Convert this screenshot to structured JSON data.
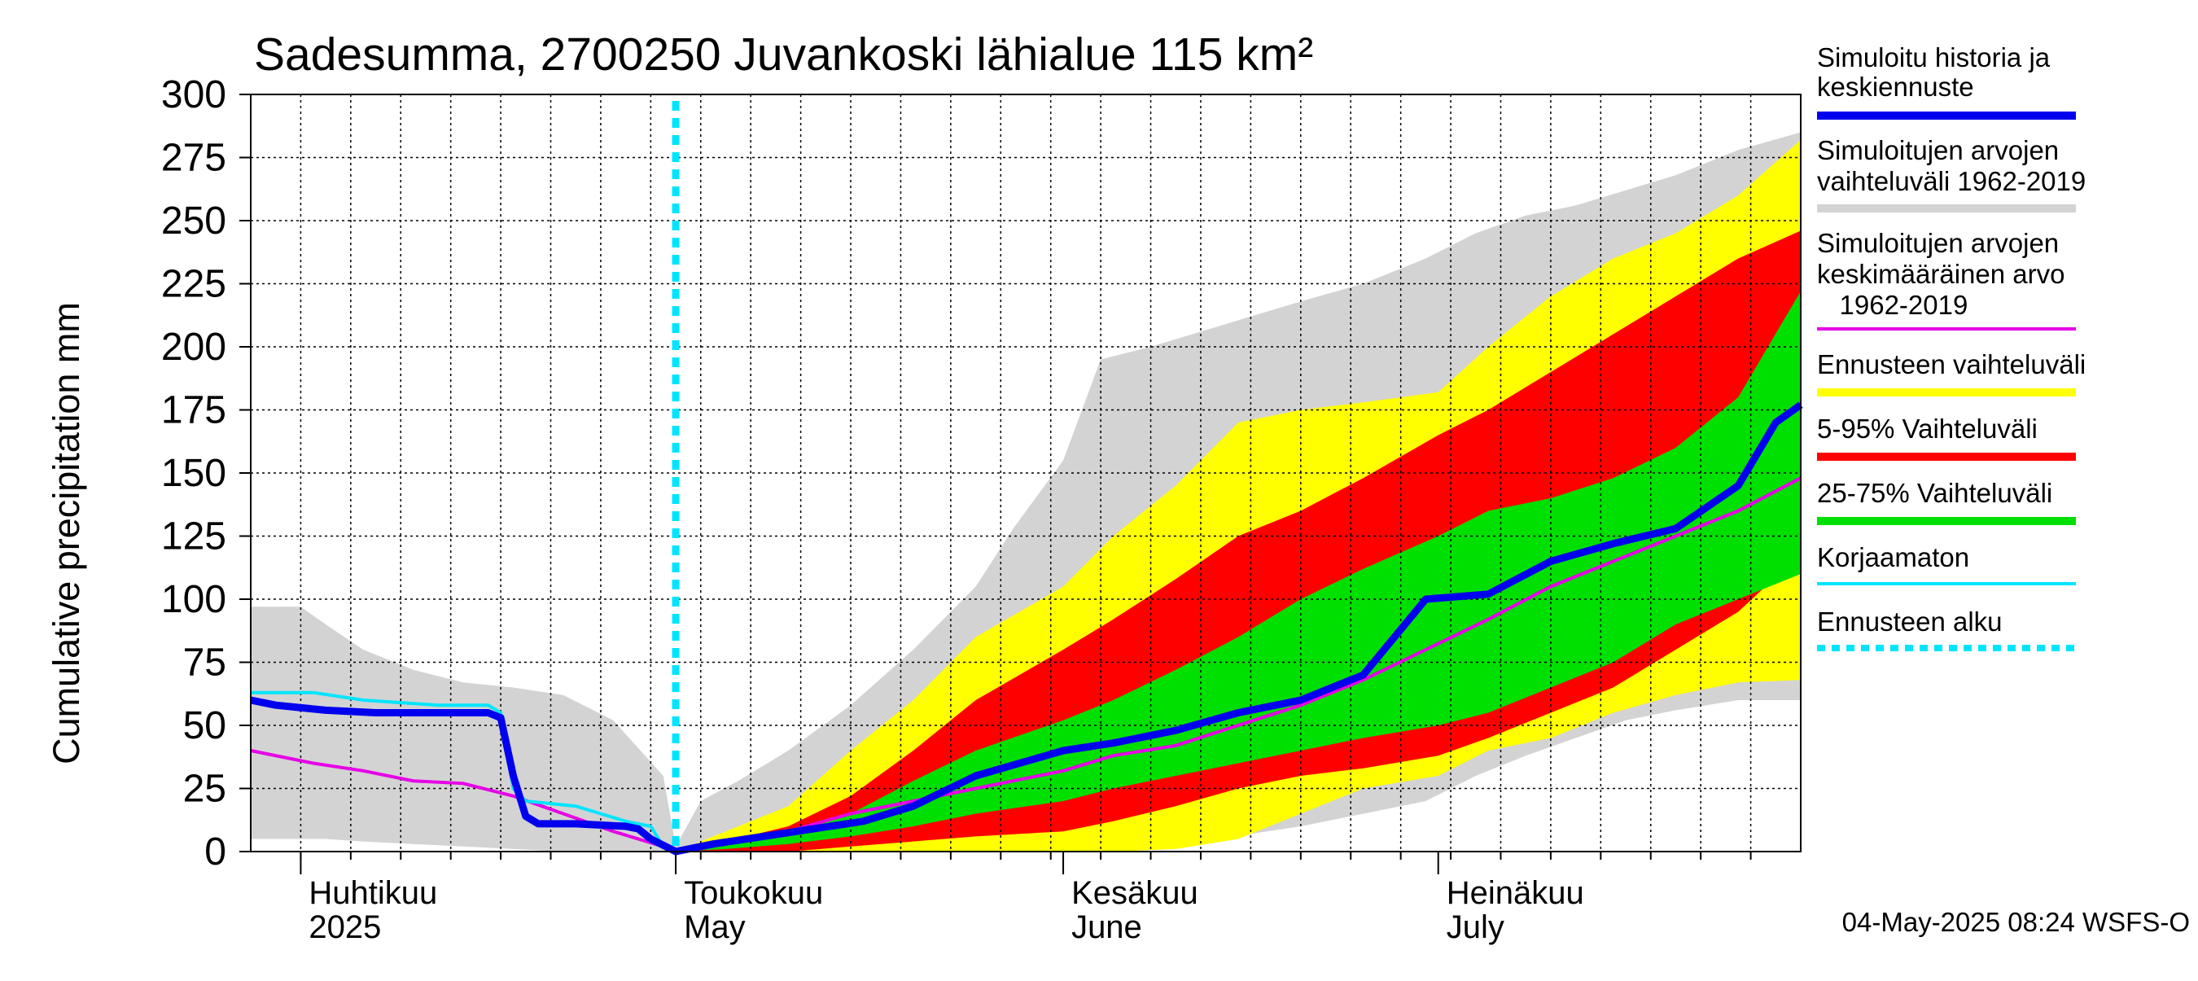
{
  "chart_data": {
    "type": "area",
    "title": "Sadesumma, 2700250 Juvankoski lähialue 115 km²",
    "ylabel": "Cumulative precipitation    mm",
    "xlabel": "",
    "ylim": [
      0,
      300
    ],
    "xlim": [
      "2025-03-28",
      "2025-07-30"
    ],
    "grid": true,
    "legend_position": "right",
    "yticks": [
      "0",
      "25",
      "50",
      "75",
      "100",
      "125",
      "150",
      "175",
      "200",
      "225",
      "250",
      "275",
      "300"
    ],
    "month_labels": [
      {
        "date": "2025-04-01",
        "line1": "Huhtikuu",
        "line2": "2025"
      },
      {
        "date": "2025-05-01",
        "line1": "Toukokuu",
        "line2": "May"
      },
      {
        "date": "2025-06-01",
        "line1": "Kesäkuu",
        "line2": "June"
      },
      {
        "date": "2025-07-01",
        "line1": "Heinäkuu",
        "line2": "July"
      }
    ],
    "forecast_start": "2025-05-01",
    "footer": "04-May-2025 08:24 WSFS-O",
    "legend": [
      {
        "label": "Simuloitu historia ja\nkeskiennuste",
        "color": "#0000ee",
        "style": "thick"
      },
      {
        "label": "Simuloitujen arvojen\nvaihteluväli 1962-2019",
        "color": "#d3d3d3",
        "style": "thick"
      },
      {
        "label": "Simuloitujen arvojen\nkeskimääräinen arvo\n   1962-2019",
        "color": "#e600e6",
        "style": "thin"
      },
      {
        "label": "Ennusteen vaihteluväli",
        "color": "#ffff00",
        "style": "thick"
      },
      {
        "label": "5-95% Vaihteluväli",
        "color": "#ff0000",
        "style": "thick"
      },
      {
        "label": "25-75% Vaihteluväli",
        "color": "#00e000",
        "style": "thick"
      },
      {
        "label": "Korjaamaton",
        "color": "#00e5ff",
        "style": "thin"
      },
      {
        "label": "Ennusteen alku",
        "color": "#00e5ff",
        "style": "dotted"
      }
    ],
    "bands": {
      "hist_range": {
        "x": [
          "2025-03-28",
          "2025-04-01",
          "2025-04-03",
          "2025-04-06",
          "2025-04-10",
          "2025-04-14",
          "2025-04-18",
          "2025-04-22",
          "2025-04-26",
          "2025-04-30",
          "2025-05-01",
          "2025-05-03",
          "2025-05-06",
          "2025-05-10",
          "2025-05-15",
          "2025-05-20",
          "2025-05-25",
          "2025-05-28",
          "2025-06-01",
          "2025-06-04",
          "2025-06-08",
          "2025-06-12",
          "2025-06-16",
          "2025-06-20",
          "2025-06-25",
          "2025-06-30",
          "2025-07-04",
          "2025-07-08",
          "2025-07-12",
          "2025-07-16",
          "2025-07-20",
          "2025-07-25",
          "2025-07-30"
        ],
        "lower": [
          5,
          5,
          5,
          4,
          3,
          2,
          1,
          0,
          0,
          0,
          0,
          0,
          0,
          0,
          0,
          0,
          0,
          0,
          0,
          1,
          3,
          5,
          7,
          10,
          15,
          20,
          30,
          38,
          45,
          52,
          56,
          60,
          60
        ],
        "upper": [
          97,
          97,
          90,
          80,
          72,
          67,
          65,
          62,
          52,
          30,
          2,
          20,
          28,
          40,
          58,
          80,
          105,
          128,
          155,
          195,
          200,
          206,
          212,
          218,
          225,
          235,
          245,
          252,
          256,
          262,
          268,
          278,
          285
        ]
      },
      "forecast_range": {
        "x": [
          "2025-05-01",
          "2025-05-05",
          "2025-05-10",
          "2025-05-15",
          "2025-05-20",
          "2025-05-25",
          "2025-06-01",
          "2025-06-05",
          "2025-06-10",
          "2025-06-15",
          "2025-06-20",
          "2025-06-25",
          "2025-07-01",
          "2025-07-05",
          "2025-07-10",
          "2025-07-15",
          "2025-07-20",
          "2025-07-25",
          "2025-07-30"
        ],
        "lower": [
          0,
          0,
          0,
          0,
          0,
          0,
          0,
          0,
          1,
          5,
          15,
          25,
          30,
          40,
          45,
          55,
          62,
          67,
          68
        ],
        "upper": [
          0,
          8,
          18,
          40,
          60,
          85,
          105,
          125,
          145,
          170,
          175,
          178,
          182,
          200,
          220,
          235,
          245,
          260,
          282
        ]
      },
      "p5_95": {
        "x": [
          "2025-05-01",
          "2025-05-05",
          "2025-05-10",
          "2025-05-15",
          "2025-05-20",
          "2025-05-25",
          "2025-06-01",
          "2025-06-05",
          "2025-06-10",
          "2025-06-15",
          "2025-06-20",
          "2025-06-25",
          "2025-07-01",
          "2025-07-05",
          "2025-07-10",
          "2025-07-15",
          "2025-07-20",
          "2025-07-25",
          "2025-07-30"
        ],
        "lower": [
          0,
          0,
          0,
          2,
          4,
          6,
          8,
          12,
          18,
          25,
          30,
          33,
          38,
          45,
          55,
          65,
          80,
          95,
          118
        ],
        "upper": [
          0,
          4,
          10,
          22,
          40,
          60,
          80,
          92,
          108,
          125,
          135,
          148,
          165,
          175,
          190,
          205,
          220,
          235,
          246
        ]
      },
      "p25_75": {
        "x": [
          "2025-05-01",
          "2025-05-05",
          "2025-05-10",
          "2025-05-15",
          "2025-05-20",
          "2025-05-25",
          "2025-06-01",
          "2025-06-05",
          "2025-06-10",
          "2025-06-15",
          "2025-06-20",
          "2025-06-25",
          "2025-07-01",
          "2025-07-05",
          "2025-07-10",
          "2025-07-15",
          "2025-07-20",
          "2025-07-25",
          "2025-07-30"
        ],
        "lower": [
          0,
          1,
          3,
          6,
          10,
          15,
          20,
          25,
          30,
          35,
          40,
          45,
          50,
          55,
          65,
          75,
          90,
          100,
          110
        ],
        "upper": [
          0,
          3,
          8,
          15,
          28,
          40,
          52,
          60,
          72,
          85,
          100,
          112,
          125,
          135,
          140,
          148,
          160,
          180,
          222
        ]
      }
    },
    "series": [
      {
        "name": "mean_forecast",
        "x": [
          "2025-03-28",
          "2025-03-30",
          "2025-04-03",
          "2025-04-07",
          "2025-04-12",
          "2025-04-16",
          "2025-04-17",
          "2025-04-18",
          "2025-04-19",
          "2025-04-20",
          "2025-04-23",
          "2025-04-27",
          "2025-04-28",
          "2025-04-29",
          "2025-05-01",
          "2025-05-04",
          "2025-05-08",
          "2025-05-12",
          "2025-05-16",
          "2025-05-20",
          "2025-05-25",
          "2025-06-01",
          "2025-06-05",
          "2025-06-10",
          "2025-06-15",
          "2025-06-20",
          "2025-06-25",
          "2025-06-30",
          "2025-07-05",
          "2025-07-10",
          "2025-07-15",
          "2025-07-20",
          "2025-07-25",
          "2025-07-28",
          "2025-07-30"
        ],
        "values": [
          60,
          58,
          56,
          55,
          55,
          55,
          53,
          30,
          14,
          11,
          11,
          10,
          9,
          5,
          0,
          3,
          6,
          9,
          12,
          18,
          30,
          40,
          43,
          48,
          55,
          60,
          70,
          100,
          102,
          115,
          122,
          128,
          145,
          170,
          177
        ]
      },
      {
        "name": "uncorrected",
        "x": [
          "2025-03-28",
          "2025-04-02",
          "2025-04-06",
          "2025-04-12",
          "2025-04-16",
          "2025-04-17",
          "2025-04-18",
          "2025-04-19",
          "2025-04-23",
          "2025-04-25",
          "2025-04-27",
          "2025-04-29",
          "2025-04-30"
        ],
        "values": [
          63,
          63,
          60,
          58,
          58,
          55,
          25,
          20,
          18,
          15,
          12,
          10,
          2
        ]
      },
      {
        "name": "historical_mean",
        "x": [
          "2025-03-28",
          "2025-04-02",
          "2025-04-06",
          "2025-04-10",
          "2025-04-14",
          "2025-04-18",
          "2025-04-22",
          "2025-04-26",
          "2025-04-30",
          "2025-05-01",
          "2025-05-05",
          "2025-05-10",
          "2025-05-15",
          "2025-05-20",
          "2025-05-25",
          "2025-06-01",
          "2025-06-05",
          "2025-06-10",
          "2025-06-15",
          "2025-06-20",
          "2025-06-25",
          "2025-06-30",
          "2025-07-05",
          "2025-07-10",
          "2025-07-15",
          "2025-07-20",
          "2025-07-25",
          "2025-07-30"
        ],
        "values": [
          40,
          35,
          32,
          28,
          27,
          22,
          15,
          8,
          2,
          0,
          3,
          8,
          15,
          20,
          25,
          32,
          38,
          42,
          50,
          58,
          68,
          80,
          92,
          105,
          115,
          125,
          135,
          148
        ]
      }
    ]
  }
}
